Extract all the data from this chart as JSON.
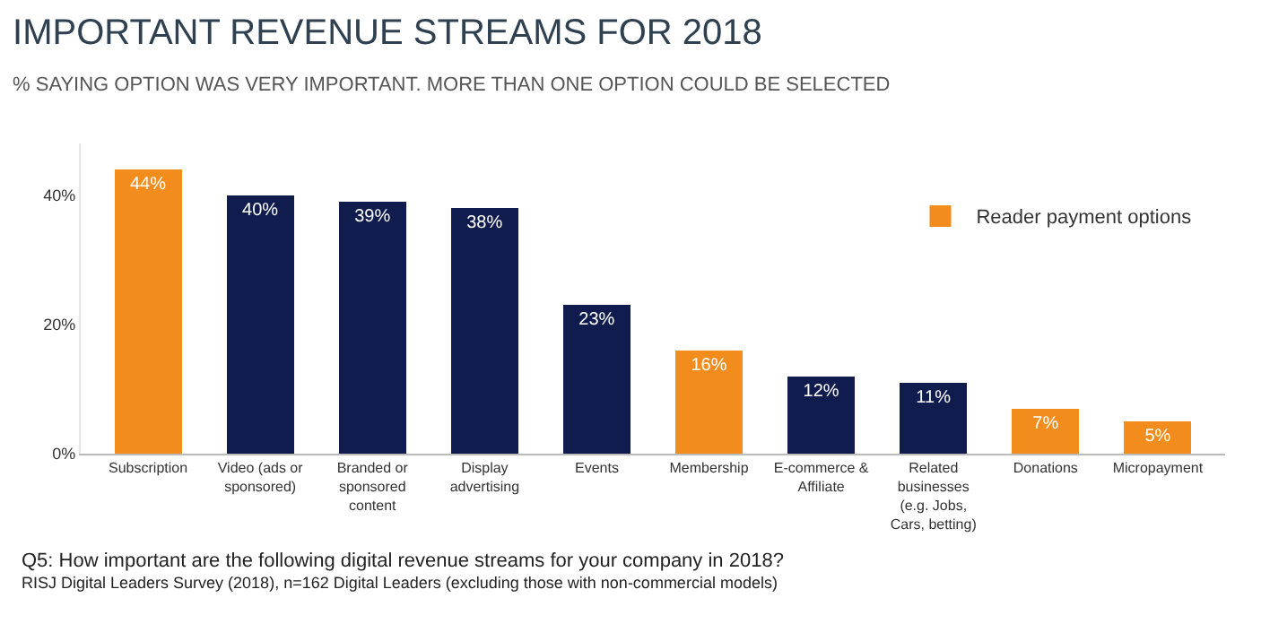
{
  "chart_data": {
    "type": "bar",
    "title": "IMPORTANT REVENUE STREAMS FOR 2018",
    "subtitle": "% SAYING OPTION WAS VERY IMPORTANT. MORE THAN ONE OPTION COULD BE SELECTED",
    "categories": [
      "Subscription",
      "Video (ads or sponsored)",
      "Branded or sponsored content",
      "Display advertising",
      "Events",
      "Membership",
      "E-commerce & Affiliate",
      "Related businesses (e.g. Jobs, Cars, betting)",
      "Donations",
      "Micropayment"
    ],
    "series": [
      {
        "name": "Reader payment options",
        "color": "#f28c1c",
        "values": [
          44,
          null,
          null,
          null,
          null,
          16,
          null,
          null,
          7,
          5
        ],
        "value_labels": [
          "44%",
          null,
          null,
          null,
          null,
          "16%",
          null,
          null,
          "7%",
          "5%"
        ]
      },
      {
        "color": "#0f1c4d",
        "values": [
          null,
          40,
          39,
          38,
          23,
          null,
          12,
          11,
          null,
          null
        ],
        "value_labels": [
          null,
          "40%",
          "39%",
          "38%",
          "23%",
          null,
          "12%",
          "11%",
          null,
          null
        ]
      }
    ],
    "stacked": true,
    "ylim": [
      0,
      48
    ],
    "yticks": [
      {
        "value": 0,
        "label": "0%"
      },
      {
        "value": 20,
        "label": "20%"
      },
      {
        "value": 40,
        "label": "40%"
      }
    ],
    "grid": false,
    "legend": "top right",
    "annotations": [
      "Q5: How important are the following digital revenue streams for your company in 2018?",
      "RISJ Digital Leaders Survey (2018), n=162 Digital Leaders (excluding those with non-commercial models)"
    ]
  }
}
